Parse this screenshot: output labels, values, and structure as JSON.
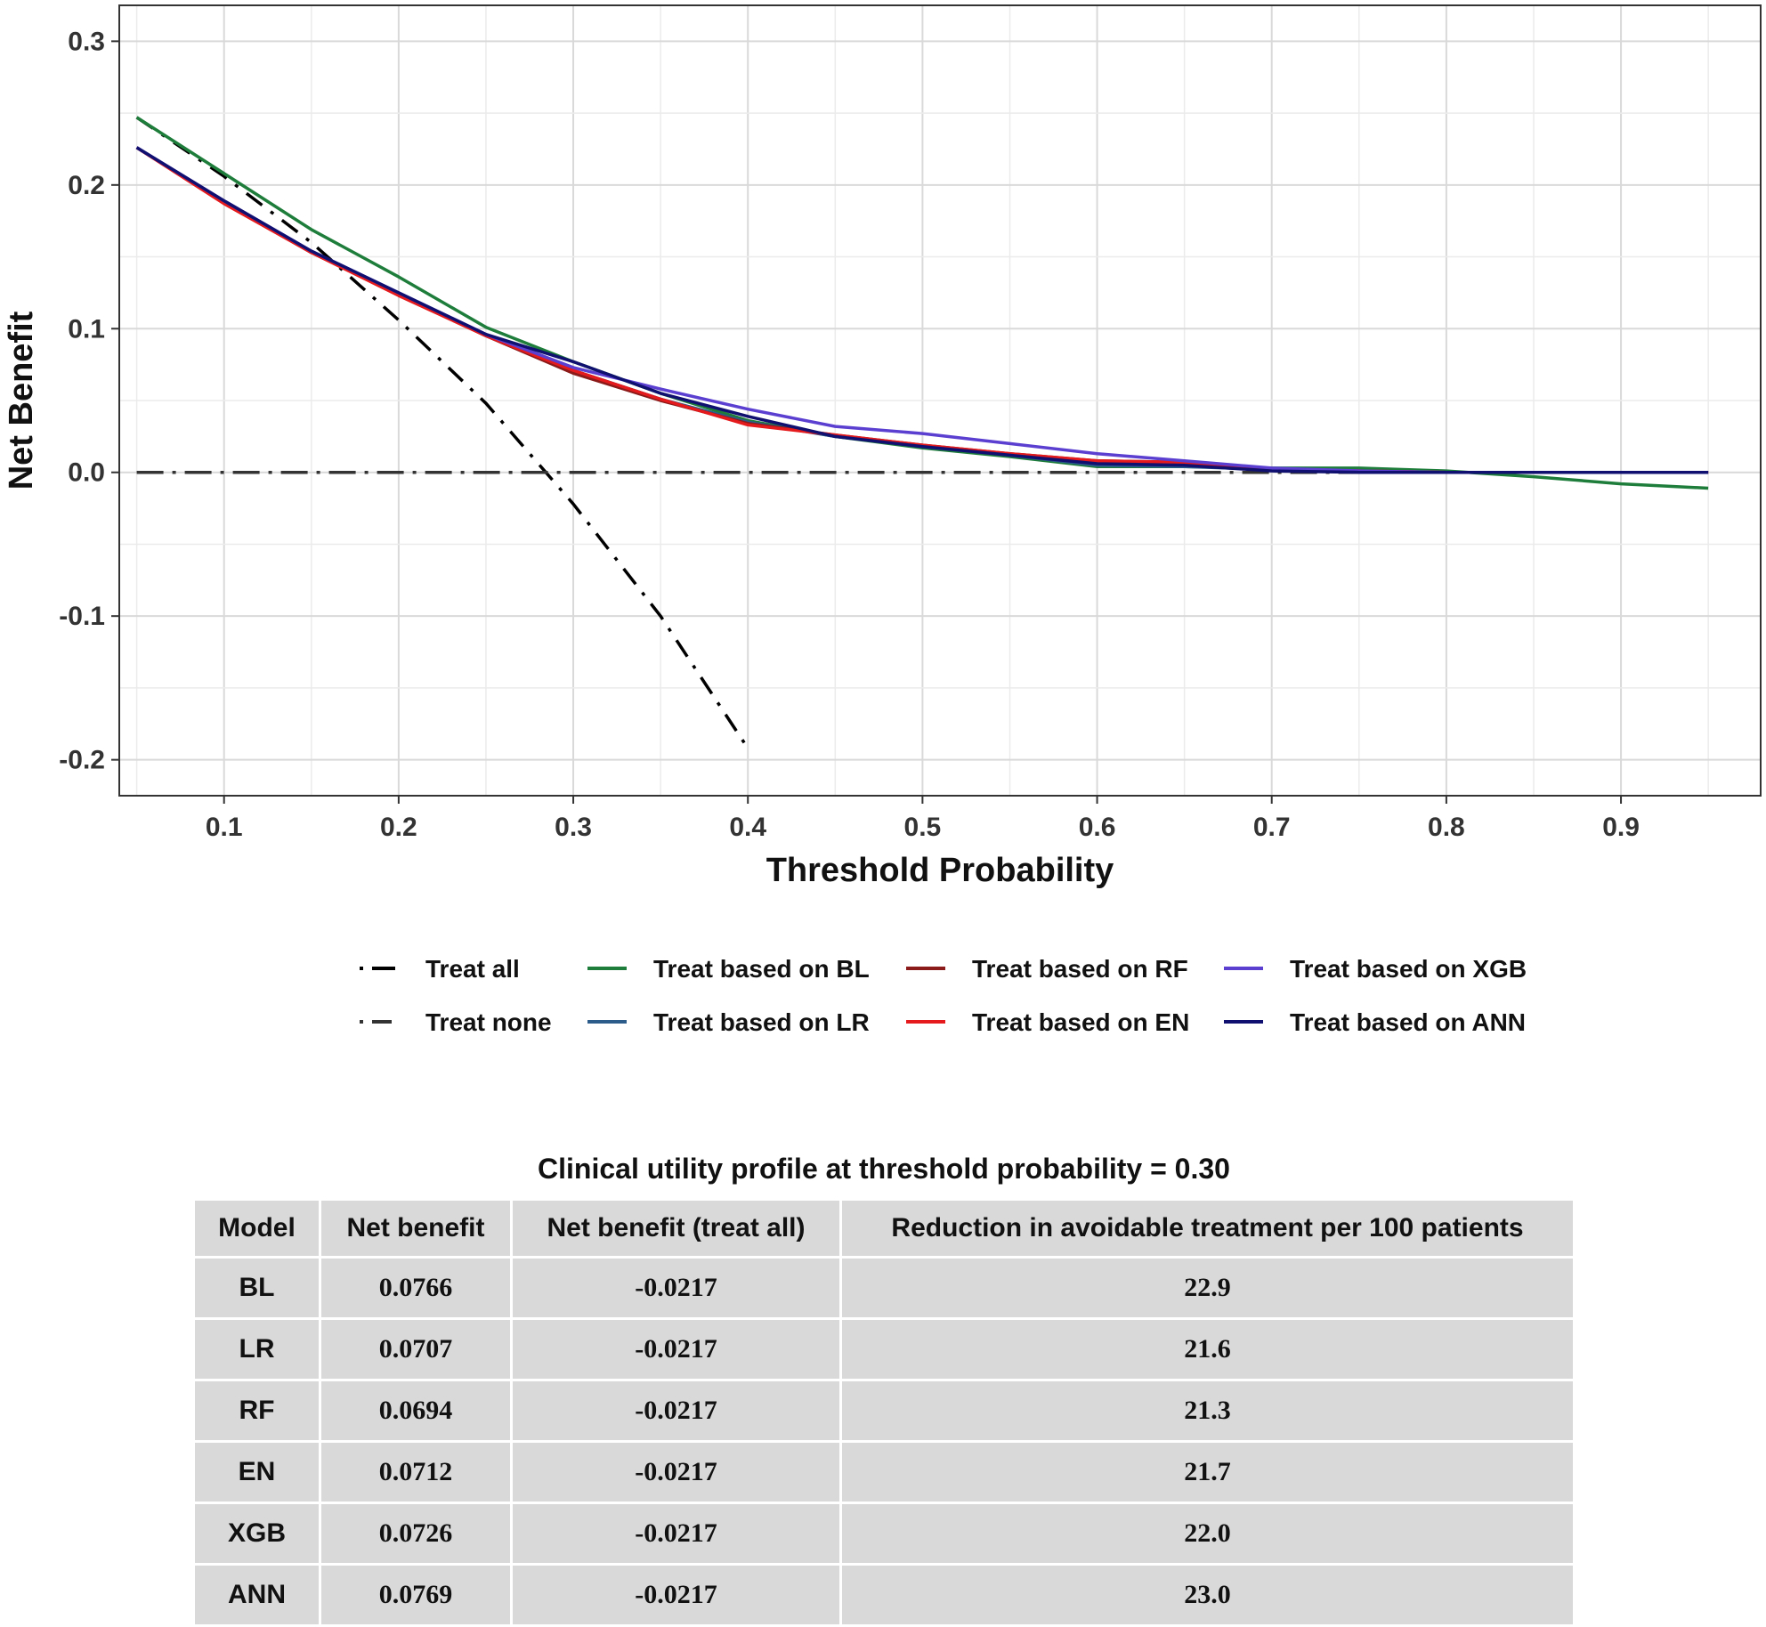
{
  "chart_data": {
    "type": "line",
    "title": "",
    "xlabel": "Threshold Probability",
    "ylabel": "Net Benefit",
    "xlim": [
      0.04,
      0.98
    ],
    "ylim": [
      -0.225,
      0.325
    ],
    "xticks": [
      0.1,
      0.2,
      0.3,
      0.4,
      0.5,
      0.6,
      0.7,
      0.8,
      0.9
    ],
    "xtick_labels": [
      "0.1",
      "0.2",
      "0.3",
      "0.4",
      "0.5",
      "0.6",
      "0.7",
      "0.8",
      "0.9"
    ],
    "yticks": [
      -0.2,
      -0.1,
      0.0,
      0.1,
      0.2,
      0.3
    ],
    "ytick_labels": [
      "-0.2",
      "-0.1",
      "0.0",
      "0.1",
      "0.2",
      "0.3"
    ],
    "grid": true,
    "legend_position": "bottom",
    "series": [
      {
        "name": "Treat all",
        "color": "#000000",
        "style": "dash-dot",
        "x": [
          0.05,
          0.1,
          0.15,
          0.2,
          0.25,
          0.3,
          0.35,
          0.4
        ],
        "y": [
          0.247,
          0.206,
          0.16,
          0.106,
          0.048,
          -0.022,
          -0.1,
          -0.192
        ]
      },
      {
        "name": "Treat none",
        "color": "#333333",
        "style": "long-dash-dot",
        "x": [
          0.05,
          0.95
        ],
        "y": [
          0.0,
          0.0
        ]
      },
      {
        "name": "Treat based on BL",
        "color": "#1e7d3a",
        "style": "solid",
        "x": [
          0.05,
          0.1,
          0.15,
          0.2,
          0.25,
          0.3,
          0.35,
          0.4,
          0.45,
          0.5,
          0.55,
          0.6,
          0.65,
          0.7,
          0.75,
          0.8,
          0.85,
          0.9,
          0.95
        ],
        "y": [
          0.247,
          0.208,
          0.169,
          0.136,
          0.101,
          0.077,
          0.055,
          0.036,
          0.025,
          0.017,
          0.011,
          0.004,
          0.004,
          0.003,
          0.003,
          0.001,
          -0.003,
          -0.008,
          -0.011
        ]
      },
      {
        "name": "Treat based on LR",
        "color": "#2b5c8a",
        "style": "solid",
        "x": [
          0.05,
          0.1,
          0.15,
          0.2,
          0.25,
          0.3,
          0.35,
          0.4,
          0.45,
          0.5,
          0.55,
          0.6,
          0.65,
          0.7,
          0.75,
          0.8,
          0.85,
          0.9,
          0.95
        ],
        "y": [
          0.226,
          0.188,
          0.153,
          0.124,
          0.095,
          0.071,
          0.051,
          0.035,
          0.025,
          0.018,
          0.012,
          0.005,
          0.004,
          0.002,
          0.001,
          0.0,
          0.0,
          0.0,
          0.0
        ]
      },
      {
        "name": "Treat based on RF",
        "color": "#8b1a1a",
        "style": "solid",
        "x": [
          0.05,
          0.1,
          0.15,
          0.2,
          0.25,
          0.3,
          0.35,
          0.4,
          0.45,
          0.5,
          0.55,
          0.6,
          0.65,
          0.7,
          0.75,
          0.8,
          0.85,
          0.9,
          0.95
        ],
        "y": [
          0.226,
          0.188,
          0.153,
          0.124,
          0.095,
          0.069,
          0.05,
          0.034,
          0.026,
          0.019,
          0.013,
          0.008,
          0.007,
          0.002,
          0.001,
          0.0,
          0.0,
          0.0,
          0.0
        ]
      },
      {
        "name": "Treat based on EN",
        "color": "#e41a1c",
        "style": "solid",
        "x": [
          0.05,
          0.1,
          0.15,
          0.2,
          0.25,
          0.3,
          0.35,
          0.4,
          0.45,
          0.5,
          0.55,
          0.6,
          0.65,
          0.7,
          0.75,
          0.8,
          0.85,
          0.9,
          0.95
        ],
        "y": [
          0.226,
          0.187,
          0.153,
          0.123,
          0.095,
          0.071,
          0.051,
          0.033,
          0.026,
          0.019,
          0.013,
          0.008,
          0.007,
          0.002,
          0.001,
          0.0,
          0.0,
          0.0,
          0.0
        ]
      },
      {
        "name": "Treat based on XGB",
        "color": "#5a3fd1",
        "style": "solid",
        "x": [
          0.05,
          0.1,
          0.15,
          0.2,
          0.25,
          0.3,
          0.35,
          0.4,
          0.45,
          0.5,
          0.55,
          0.6,
          0.65,
          0.7,
          0.75,
          0.8,
          0.85,
          0.9,
          0.95
        ],
        "y": [
          0.226,
          0.189,
          0.154,
          0.125,
          0.096,
          0.073,
          0.058,
          0.044,
          0.032,
          0.027,
          0.02,
          0.013,
          0.008,
          0.003,
          0.001,
          0.0,
          0.0,
          0.0,
          0.0
        ]
      },
      {
        "name": "Treat based on ANN",
        "color": "#101070",
        "style": "solid",
        "x": [
          0.05,
          0.1,
          0.15,
          0.2,
          0.25,
          0.3,
          0.35,
          0.4,
          0.45,
          0.5,
          0.55,
          0.6,
          0.65,
          0.7,
          0.75,
          0.8,
          0.85,
          0.9,
          0.95
        ],
        "y": [
          0.226,
          0.189,
          0.154,
          0.125,
          0.096,
          0.077,
          0.055,
          0.039,
          0.025,
          0.018,
          0.012,
          0.006,
          0.005,
          0.001,
          0.0,
          0.0,
          0.0,
          0.0,
          0.0
        ]
      }
    ]
  },
  "table": {
    "title": "Clinical utility profile at threshold probability = 0.30",
    "headers": [
      "Model",
      "Net benefit",
      "Net benefit (treat all)",
      "Reduction in avoidable treatment per 100 patients"
    ],
    "rows": [
      [
        "BL",
        "0.0766",
        "-0.0217",
        "22.9"
      ],
      [
        "LR",
        "0.0707",
        "-0.0217",
        "21.6"
      ],
      [
        "RF",
        "0.0694",
        "-0.0217",
        "21.3"
      ],
      [
        "EN",
        "0.0712",
        "-0.0217",
        "21.7"
      ],
      [
        "XGB",
        "0.0726",
        "-0.0217",
        "22.0"
      ],
      [
        "ANN",
        "0.0769",
        "-0.0217",
        "23.0"
      ]
    ]
  }
}
